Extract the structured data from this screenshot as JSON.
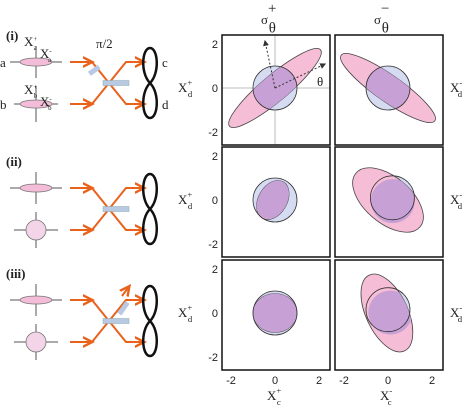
{
  "panel_labels": [
    "(i)",
    "(ii)",
    "(iii)"
  ],
  "ports": [
    "a",
    "b",
    "c",
    "d"
  ],
  "phase": "π/2",
  "angle": "θ",
  "input_quadratures": [
    {
      "main": "X",
      "sub": "a",
      "sup": "+"
    },
    {
      "main": "X",
      "sub": "a",
      "sup": "-"
    },
    {
      "main": "X",
      "sub": "b",
      "sup": "+"
    },
    {
      "main": "X",
      "sub": "b",
      "sup": "-"
    }
  ],
  "columns": [
    {
      "main": "σ",
      "sub": "θ",
      "sup": "+"
    },
    {
      "main": "σ",
      "sub": "θ",
      "sup": "−"
    }
  ],
  "y_labels": [
    {
      "main": "X",
      "sub": "d",
      "sup": "+"
    },
    {
      "main": "X",
      "sub": "d",
      "sup": "-"
    }
  ],
  "x_labels": [
    {
      "main": "X",
      "sub": "c",
      "sup": "+"
    },
    {
      "main": "X",
      "sub": "c",
      "sup": "-"
    }
  ],
  "ticks": [
    "-2",
    "0",
    "2"
  ]
}
